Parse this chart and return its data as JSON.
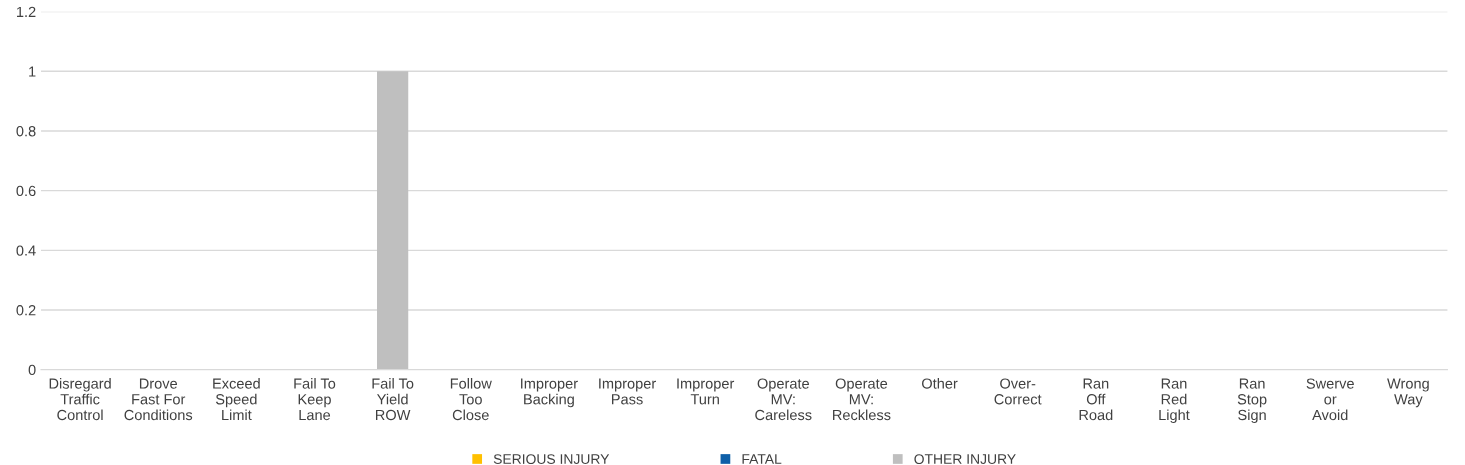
{
  "chart_data": {
    "type": "bar",
    "stacked": true,
    "categories": [
      "Disregard\nTraffic\nControl",
      "Drove\nFast For\nConditions",
      "Exceed\nSpeed\nLimit",
      "Fail To\nKeep\nLane",
      "Fail To\nYield\nROW",
      "Follow\nToo\nClose",
      "Improper\nBacking",
      "Improper\nPass",
      "Improper\nTurn",
      "Operate\nMV:\nCareless",
      "Operate\nMV:\nReckless",
      "Other",
      "Over-\nCorrect",
      "Ran\nOff\nRoad",
      "Ran\nRed\nLight",
      "Ran\nStop\nSign",
      "Swerve\nor\nAvoid",
      "Wrong\nWay"
    ],
    "series": [
      {
        "name": "SERIOUS INJURY",
        "color": "#ffc000",
        "values": [
          0,
          0,
          0,
          0,
          0,
          0,
          0,
          0,
          0,
          0,
          0,
          0,
          0,
          0,
          0,
          0,
          0,
          0
        ]
      },
      {
        "name": "FATAL",
        "color": "#0e5fa8",
        "values": [
          0,
          0,
          0,
          0,
          0,
          0,
          0,
          0,
          0,
          0,
          0,
          0,
          0,
          0,
          0,
          0,
          0,
          0
        ]
      },
      {
        "name": "OTHER INJURY",
        "color": "#bfbfbf",
        "values": [
          0,
          0,
          0,
          0,
          1,
          0,
          0,
          0,
          0,
          0,
          0,
          0,
          0,
          0,
          0,
          0,
          0,
          0
        ]
      }
    ],
    "ylim": [
      0,
      1.2
    ],
    "yticks": [
      0,
      0.2,
      0.4,
      0.6,
      0.8,
      1,
      1.2
    ],
    "grid": "y",
    "legend": "bottom"
  }
}
